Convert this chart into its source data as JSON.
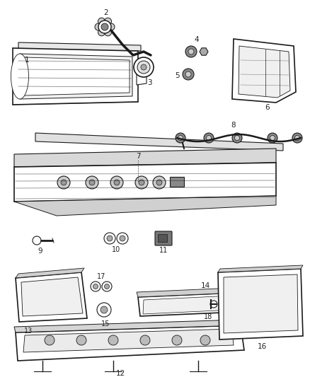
{
  "background_color": "#ffffff",
  "line_color": "#1a1a1a",
  "label_color": "#222222",
  "fig_width": 4.38,
  "fig_height": 5.33,
  "dpi": 100
}
